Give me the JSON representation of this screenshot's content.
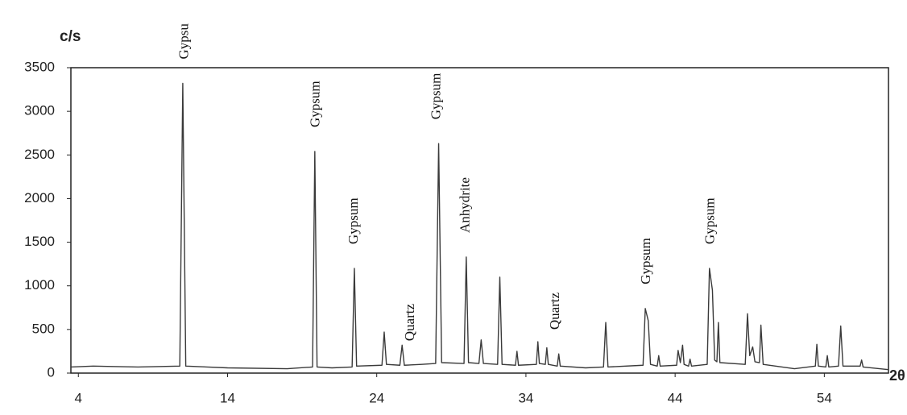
{
  "chart_data": {
    "type": "line",
    "y_label": "c/s",
    "x_label": "2θ",
    "xlim": [
      3.5,
      58.3
    ],
    "ylim": [
      0,
      3500
    ],
    "xticks": [
      4,
      14,
      24,
      34,
      44,
      54
    ],
    "yticks": [
      0,
      500,
      1000,
      1500,
      2000,
      2500,
      3000,
      3500
    ],
    "series": [
      {
        "color": "#3a3a3a",
        "x": [
          3.5,
          5,
          8,
          10.8,
          11.0,
          11.2,
          14,
          18,
          19.7,
          19.85,
          20.0,
          21,
          22.35,
          22.5,
          22.65,
          24.35,
          24.5,
          24.65,
          25.55,
          25.7,
          25.85,
          27,
          27.95,
          28.15,
          28.35,
          29.85,
          30.0,
          30.15,
          30.85,
          31.0,
          31.15,
          32.1,
          32.25,
          32.4,
          33.3,
          33.4,
          33.5,
          34.7,
          34.8,
          34.9,
          35.3,
          35.4,
          35.5,
          36.1,
          36.2,
          36.3,
          38,
          39.2,
          39.35,
          39.5,
          41.85,
          42.0,
          42.2,
          42.35,
          42.8,
          42.9,
          43.0,
          44.1,
          44.2,
          44.35,
          44.5,
          44.6,
          44.9,
          45.0,
          45.1,
          46.15,
          46.3,
          46.5,
          46.65,
          46.8,
          46.9,
          47.0,
          48.7,
          48.85,
          49.0,
          49.2,
          49.35,
          49.65,
          49.75,
          49.9,
          52,
          53.4,
          53.5,
          53.6,
          54.1,
          54.2,
          54.3,
          54.95,
          55.1,
          55.25,
          56.4,
          56.5,
          56.6,
          58.3
        ],
        "values": [
          70,
          80,
          70,
          80,
          3320,
          80,
          60,
          50,
          70,
          2540,
          70,
          60,
          70,
          1200,
          80,
          90,
          470,
          100,
          90,
          320,
          90,
          100,
          110,
          2630,
          120,
          110,
          1330,
          120,
          110,
          380,
          110,
          100,
          1100,
          100,
          90,
          250,
          90,
          100,
          360,
          110,
          100,
          290,
          100,
          80,
          220,
          80,
          60,
          70,
          580,
          70,
          90,
          740,
          600,
          100,
          80,
          200,
          80,
          90,
          260,
          120,
          320,
          100,
          80,
          160,
          80,
          100,
          1200,
          950,
          150,
          130,
          580,
          120,
          100,
          680,
          200,
          300,
          130,
          120,
          550,
          100,
          50,
          80,
          330,
          80,
          70,
          200,
          70,
          80,
          540,
          80,
          80,
          150,
          70,
          40
        ]
      }
    ],
    "annotations": [
      {
        "text": "Gypsu",
        "x": 11.15
      },
      {
        "text": "Gypsum",
        "x": 19.95
      },
      {
        "text": "Gypsum",
        "x": 22.5
      },
      {
        "text": "Quartz",
        "x": 26.3
      },
      {
        "text": "Gypsum",
        "x": 28.05
      },
      {
        "text": "Anhydrite",
        "x": 30.0
      },
      {
        "text": "Quartz",
        "x": 36.0
      },
      {
        "text": "Gypsum",
        "x": 42.1
      },
      {
        "text": "Gypsum",
        "x": 46.4
      }
    ]
  }
}
